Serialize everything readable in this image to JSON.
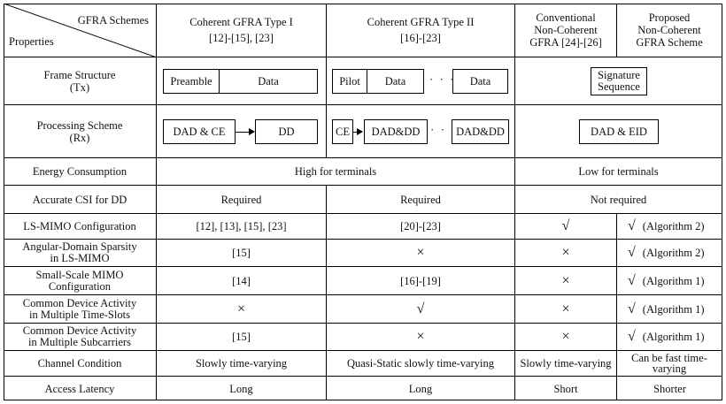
{
  "header": {
    "schemes_label": "GFRA Schemes",
    "properties_label": "Properties",
    "type1": [
      "Coherent GFRA Type I",
      "[12]-[15],  [23]"
    ],
    "type2": [
      "Coherent GFRA Type II",
      "[16]-[23]"
    ],
    "conv": [
      "Conventional",
      "Non-Coherent",
      "GFRA  [24]-[26]"
    ],
    "prop": [
      "Proposed",
      "Non-Coherent",
      "GFRA Scheme"
    ]
  },
  "frame": {
    "label": [
      "Frame Structure",
      "(Tx)"
    ],
    "t1_preamble": "Preamble",
    "t1_data": "Data",
    "t2_pilot": "Pilot",
    "t2_data1": "Data",
    "t2_dots": "· · ·",
    "t2_data2": "Data",
    "nc_sig": [
      "Signature",
      "Sequence"
    ]
  },
  "processing": {
    "label": [
      "Processing Scheme",
      "(Rx)"
    ],
    "t1_a": "DAD & CE",
    "t1_b": "DD",
    "t2_ce": "CE",
    "t2_a": "DAD&DD",
    "t2_dots": "· · ·",
    "t2_b": "DAD&DD",
    "nc": "DAD & EID"
  },
  "rows": {
    "energy": {
      "label": "Energy Consumption",
      "coherent": "High for terminals",
      "noncoherent": "Low for terminals"
    },
    "csi": {
      "label": "Accurate CSI for DD",
      "t1": "Required",
      "t2": "Required",
      "nc": "Not required"
    },
    "lsmimo": {
      "label": "LS-MIMO Configuration",
      "t1": "[12], [13], [15],  [23]",
      "t2": "[20]-[23]",
      "conv": "√",
      "prop_sym": "√",
      "prop_txt": "(Algorithm 2)"
    },
    "angular": {
      "label": [
        "Angular-Domain Sparsity",
        "in LS-MIMO"
      ],
      "t1": "[15]",
      "t2": "×",
      "conv": "×",
      "prop_sym": "√",
      "prop_txt": "(Algorithm 2)"
    },
    "small": {
      "label": [
        "Small-Scale MIMO",
        "Configuration"
      ],
      "t1": "[14]",
      "t2": "[16]-[19]",
      "conv": "×",
      "prop_sym": "√",
      "prop_txt": "(Algorithm 1)"
    },
    "time": {
      "label": [
        "Common Device Activity",
        "in Multiple Time-Slots"
      ],
      "t1": "×",
      "t2": "√",
      "conv": "×",
      "prop_sym": "√",
      "prop_txt": "(Algorithm 1)"
    },
    "subc": {
      "label": [
        "Common Device Activity",
        "in Multiple Subcarriers"
      ],
      "t1": "[15]",
      "t2": "×",
      "conv": "×",
      "prop_sym": "√",
      "prop_txt": "(Algorithm 1)"
    },
    "channel": {
      "label": "Channel Condition",
      "t1": "Slowly time-varying",
      "t2": "Quasi-Static slowly time-varying",
      "conv": "Slowly time-varying",
      "prop": [
        "Can be fast time-",
        "varying"
      ]
    },
    "latency": {
      "label": "Access Latency",
      "t1": "Long",
      "t2": "Long",
      "conv": "Short",
      "prop": "Shorter"
    }
  }
}
